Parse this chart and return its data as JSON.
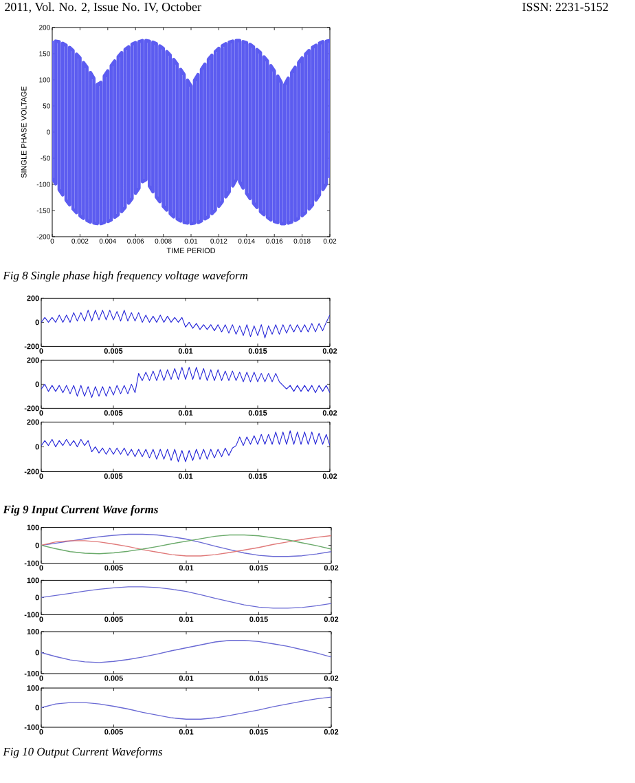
{
  "chart_data": [
    {
      "type": "line",
      "xlabel": "TIME PERIOD",
      "ylabel": "SINGLE PHASE VOLTAGE",
      "annotations": [
        "2011, Vol. No. 2, Issue No. IV, October",
        "ISSN: 2231-5152",
        "Fig 8 Single phase high frequency voltage waveform"
      ],
      "xlim": [
        0,
        0.02
      ],
      "ylim": [
        -200,
        200
      ],
      "xticks": [
        0,
        0.002,
        0.004,
        0.006,
        0.008,
        0.01,
        0.012,
        0.014,
        0.016,
        0.018,
        0.02
      ],
      "yticks": [
        -200,
        -150,
        -100,
        -50,
        0,
        50,
        100,
        150,
        200
      ],
      "x": [
        0,
        0,
        0.00025,
        0.00025,
        0.0005,
        0.0005,
        0.00075,
        0.00075,
        0.001,
        0.001,
        0.00125,
        0.00125,
        0.0015,
        0.0015,
        0.00175,
        0.00175,
        0.002,
        0.002,
        0.00225,
        0.00225,
        0.0025,
        0.0025,
        0.00275,
        0.00275,
        0.003,
        0.003,
        0.00325,
        0.00325,
        0.0035,
        0.0035,
        0.00375,
        0.00375,
        0.004,
        0.004,
        0.00425,
        0.00425,
        0.0045,
        0.0045,
        0.00475,
        0.00475,
        0.005,
        0.005,
        0.00525,
        0.00525,
        0.0055,
        0.0055,
        0.00575,
        0.00575,
        0.006,
        0.006,
        0.00625,
        0.00625,
        0.0065,
        0.0065,
        0.00675,
        0.00675,
        0.007,
        0.007,
        0.00725,
        0.00725,
        0.0075,
        0.0075,
        0.00775,
        0.00775,
        0.008,
        0.008,
        0.00825,
        0.00825,
        0.0085,
        0.0085,
        0.00875,
        0.00875,
        0.009,
        0.009,
        0.00925,
        0.00925,
        0.0095,
        0.0095,
        0.00975,
        0.00975,
        0.01,
        0.01,
        0.01025,
        0.01025,
        0.0105,
        0.0105,
        0.01075,
        0.01075,
        0.011,
        0.011,
        0.01125,
        0.01125,
        0.0115,
        0.0115,
        0.01175,
        0.01175,
        0.012,
        0.012,
        0.01225,
        0.01225,
        0.0125,
        0.0125,
        0.01275,
        0.01275,
        0.013,
        0.013,
        0.01325,
        0.01325,
        0.0135,
        0.0135,
        0.01375,
        0.01375,
        0.014,
        0.014,
        0.01425,
        0.01425,
        0.0145,
        0.0145,
        0.01475,
        0.01475,
        0.015,
        0.015,
        0.01525,
        0.01525,
        0.0155,
        0.0155,
        0.01575,
        0.01575,
        0.016,
        0.016,
        0.01625,
        0.01625,
        0.0165,
        0.0165,
        0.01675,
        0.01675,
        0.017,
        0.017,
        0.01725,
        0.01725,
        0.0175,
        0.0175,
        0.01775,
        0.01775,
        0.018,
        0.018,
        0.01825,
        0.01825,
        0.0185,
        0.0185,
        0.01875,
        0.01875,
        0.019,
        0.019,
        0.01925,
        0.01925,
        0.0195,
        0.0195,
        0.01975,
        0.01975,
        0.02,
        0.02
      ],
      "series": [
        {
          "color": "#5c5cf0",
          "values": [
            175,
            -88,
            -99,
            174,
            173,
            -110,
            -120,
            170,
            166,
            -130,
            -139,
            162,
            156,
            -147,
            -154,
            149,
            142,
            -160,
            -165,
            133,
            124,
            -169,
            -172,
            114,
            103,
            -174,
            -175,
            91,
            95,
            -175,
            -173,
            107,
            117,
            -171,
            -168,
            127,
            136,
            -163,
            -158,
            144,
            152,
            -152,
            -144,
            158,
            163,
            -136,
            -127,
            168,
            171,
            -117,
            -107,
            173,
            175,
            -95,
            -91,
            175,
            174,
            -103,
            -114,
            172,
            169,
            -124,
            -133,
            165,
            160,
            -142,
            -149,
            154,
            147,
            -156,
            -162,
            139,
            130,
            -166,
            -170,
            120,
            110,
            -173,
            -174,
            99,
            88,
            -175,
            -174,
            99,
            110,
            -173,
            -170,
            120,
            130,
            -166,
            -162,
            139,
            147,
            -156,
            -149,
            154,
            160,
            -142,
            -133,
            165,
            169,
            -124,
            -114,
            172,
            174,
            -103,
            -91,
            175,
            175,
            -95,
            -107,
            173,
            171,
            -117,
            -127,
            168,
            163,
            -136,
            -144,
            158,
            152,
            -152,
            -158,
            144,
            136,
            -163,
            -168,
            127,
            117,
            -171,
            -173,
            107,
            95,
            -175,
            -175,
            91,
            103,
            -174,
            -172,
            114,
            124,
            -169,
            -165,
            133,
            142,
            -160,
            -154,
            149,
            156,
            -147,
            -139,
            162,
            166,
            -130,
            -120,
            170,
            173,
            -110,
            -99,
            174,
            175,
            -88
          ]
        }
      ]
    },
    {
      "type": "line",
      "xlim": [
        0,
        0.02
      ],
      "ylim": [
        -200,
        200
      ],
      "xticks": [
        0,
        0.005,
        0.01,
        0.015,
        0.02
      ],
      "yticks": [
        -200,
        0,
        200
      ],
      "x": [
        0,
        0.00025,
        0.0005,
        0.00075,
        0.001,
        0.00125,
        0.0015,
        0.00175,
        0.002,
        0.00225,
        0.0025,
        0.00275,
        0.003,
        0.00325,
        0.0035,
        0.00375,
        0.004,
        0.00425,
        0.0045,
        0.00475,
        0.005,
        0.00525,
        0.0055,
        0.00575,
        0.006,
        0.00625,
        0.0065,
        0.00675,
        0.007,
        0.00725,
        0.0075,
        0.00775,
        0.008,
        0.00825,
        0.0085,
        0.00875,
        0.009,
        0.00925,
        0.0095,
        0.00975,
        0.01,
        0.01025,
        0.0105,
        0.01075,
        0.011,
        0.01125,
        0.0115,
        0.01175,
        0.012,
        0.01225,
        0.0125,
        0.01275,
        0.013,
        0.01325,
        0.0135,
        0.01375,
        0.014,
        0.01425,
        0.0145,
        0.01475,
        0.015,
        0.01525,
        0.0155,
        0.01575,
        0.016,
        0.01625,
        0.0165,
        0.01675,
        0.017,
        0.01725,
        0.0175,
        0.01775,
        0.018,
        0.01825,
        0.0185,
        0.01875,
        0.019,
        0.01925,
        0.0195,
        0.01975,
        0.02
      ],
      "series": [
        {
          "color": "#2424d8",
          "values": [
            0,
            40,
            0,
            40,
            0,
            60,
            0,
            60,
            0,
            80,
            10,
            80,
            10,
            100,
            10,
            100,
            20,
            100,
            20,
            100,
            20,
            90,
            10,
            100,
            10,
            80,
            10,
            80,
            0,
            60,
            0,
            50,
            0,
            60,
            0,
            50,
            0,
            40,
            0,
            40,
            -40,
            0,
            -50,
            -10,
            -60,
            -20,
            -60,
            -20,
            -70,
            -20,
            -80,
            -20,
            -90,
            -20,
            -100,
            -30,
            -110,
            -20,
            -120,
            -30,
            -110,
            -20,
            -130,
            -30,
            -100,
            -20,
            -100,
            -20,
            -90,
            -20,
            -80,
            -20,
            -80,
            -20,
            -80,
            -10,
            -80,
            -10,
            -70,
            0,
            60
          ]
        }
      ]
    },
    {
      "type": "line",
      "xlim": [
        0,
        0.02
      ],
      "ylim": [
        -200,
        200
      ],
      "xticks": [
        0,
        0.005,
        0.01,
        0.015,
        0.02
      ],
      "yticks": [
        -200,
        0,
        200
      ],
      "x": [
        0,
        0.00025,
        0.0005,
        0.00075,
        0.001,
        0.00125,
        0.0015,
        0.00175,
        0.002,
        0.00225,
        0.0025,
        0.00275,
        0.003,
        0.00325,
        0.0035,
        0.00375,
        0.004,
        0.00425,
        0.0045,
        0.00475,
        0.005,
        0.00525,
        0.0055,
        0.00575,
        0.006,
        0.00625,
        0.0065,
        0.00675,
        0.007,
        0.00725,
        0.0075,
        0.00775,
        0.008,
        0.00825,
        0.0085,
        0.00875,
        0.009,
        0.00925,
        0.0095,
        0.00975,
        0.01,
        0.01025,
        0.0105,
        0.01075,
        0.011,
        0.01125,
        0.0115,
        0.01175,
        0.012,
        0.01225,
        0.0125,
        0.01275,
        0.013,
        0.01325,
        0.0135,
        0.01375,
        0.014,
        0.01425,
        0.0145,
        0.01475,
        0.015,
        0.01525,
        0.0155,
        0.01575,
        0.016,
        0.01625,
        0.0165,
        0.01675,
        0.017,
        0.01725,
        0.0175,
        0.01775,
        0.018,
        0.01825,
        0.0185,
        0.01875,
        0.019,
        0.01925,
        0.0195,
        0.01975,
        0.02
      ],
      "series": [
        {
          "color": "#2424d8",
          "values": [
            -40,
            0,
            -60,
            -10,
            -60,
            -10,
            -70,
            -10,
            -80,
            -10,
            -100,
            -10,
            -100,
            -20,
            -110,
            -20,
            -100,
            -20,
            -100,
            -20,
            -90,
            -10,
            -80,
            -10,
            -80,
            0,
            -70,
            90,
            30,
            100,
            30,
            110,
            30,
            120,
            30,
            120,
            40,
            130,
            40,
            140,
            40,
            140,
            40,
            140,
            40,
            130,
            30,
            120,
            30,
            120,
            30,
            110,
            30,
            110,
            30,
            100,
            20,
            100,
            20,
            100,
            20,
            90,
            20,
            90,
            20,
            90,
            20,
            -10,
            -40,
            -10,
            -60,
            -10,
            -60,
            -10,
            -60,
            -10,
            -70,
            -10,
            -60,
            -10,
            -70
          ]
        }
      ]
    },
    {
      "type": "line",
      "annotations": [
        "Fig 9 Input Current Wave forms"
      ],
      "xlim": [
        0,
        0.02
      ],
      "ylim": [
        -200,
        200
      ],
      "xticks": [
        0,
        0.005,
        0.01,
        0.015,
        0.02
      ],
      "yticks": [
        -200,
        0,
        200
      ],
      "x": [
        0,
        0.00025,
        0.0005,
        0.00075,
        0.001,
        0.00125,
        0.0015,
        0.00175,
        0.002,
        0.00225,
        0.0025,
        0.00275,
        0.003,
        0.00325,
        0.0035,
        0.00375,
        0.004,
        0.00425,
        0.0045,
        0.00475,
        0.005,
        0.00525,
        0.0055,
        0.00575,
        0.006,
        0.00625,
        0.0065,
        0.00675,
        0.007,
        0.00725,
        0.0075,
        0.00775,
        0.008,
        0.00825,
        0.0085,
        0.00875,
        0.009,
        0.00925,
        0.0095,
        0.00975,
        0.01,
        0.01025,
        0.0105,
        0.01075,
        0.011,
        0.01125,
        0.0115,
        0.01175,
        0.012,
        0.01225,
        0.0125,
        0.01275,
        0.013,
        0.01325,
        0.0135,
        0.01375,
        0.014,
        0.01425,
        0.0145,
        0.01475,
        0.015,
        0.01525,
        0.0155,
        0.01575,
        0.016,
        0.01625,
        0.0165,
        0.01675,
        0.017,
        0.01725,
        0.0175,
        0.01775,
        0.018,
        0.01825,
        0.0185,
        0.01875,
        0.019,
        0.01925,
        0.0195,
        0.01975,
        0.02
      ],
      "series": [
        {
          "color": "#2424d8",
          "values": [
            10,
            50,
            10,
            60,
            0,
            50,
            10,
            60,
            10,
            50,
            0,
            60,
            10,
            50,
            -40,
            0,
            -50,
            -10,
            -60,
            -10,
            -60,
            -10,
            -60,
            -10,
            -70,
            -20,
            -80,
            -20,
            -80,
            -20,
            -90,
            -20,
            -100,
            -20,
            -100,
            -20,
            -110,
            -20,
            -120,
            -30,
            -120,
            -30,
            -110,
            -20,
            -100,
            -20,
            -100,
            -20,
            -90,
            -20,
            -80,
            -10,
            -70,
            -10,
            10,
            80,
            10,
            80,
            20,
            90,
            20,
            100,
            20,
            100,
            20,
            120,
            20,
            120,
            20,
            130,
            20,
            120,
            20,
            120,
            20,
            120,
            20,
            110,
            20,
            100,
            10
          ]
        }
      ]
    },
    {
      "type": "line",
      "xlim": [
        0,
        0.02
      ],
      "ylim": [
        -100,
        100
      ],
      "xticks": [
        0,
        0.005,
        0.01,
        0.015,
        0.02
      ],
      "yticks": [
        -100,
        0,
        100
      ],
      "x": [
        0,
        0.001,
        0.002,
        0.003,
        0.004,
        0.005,
        0.006,
        0.007,
        0.008,
        0.009,
        0.01,
        0.011,
        0.012,
        0.013,
        0.014,
        0.015,
        0.016,
        0.017,
        0.018,
        0.019,
        0.02
      ],
      "series": [
        {
          "color": "#6a6ad4",
          "values": [
            0,
            12,
            24,
            37,
            48,
            56,
            62,
            62,
            58,
            48,
            35,
            16,
            -5,
            -24,
            -43,
            -56,
            -62,
            -62,
            -58,
            -48,
            -35
          ]
        },
        {
          "color": "#e07a7a",
          "values": [
            0,
            19,
            26,
            26,
            19,
            7,
            -7,
            -24,
            -38,
            -52,
            -59,
            -59,
            -52,
            -40,
            -26,
            -12,
            5,
            19,
            33,
            45,
            54
          ]
        },
        {
          "color": "#6aaa6a",
          "values": [
            0,
            -19,
            -35,
            -44,
            -47,
            -42,
            -33,
            -21,
            -7,
            9,
            23,
            37,
            51,
            58,
            58,
            53,
            42,
            30,
            14,
            -2,
            -21
          ]
        }
      ]
    },
    {
      "type": "line",
      "xlim": [
        0,
        0.02
      ],
      "ylim": [
        -100,
        100
      ],
      "xticks": [
        0,
        0.005,
        0.01,
        0.015,
        0.02
      ],
      "yticks": [
        -100,
        0,
        100
      ],
      "x": [
        0,
        0.001,
        0.002,
        0.003,
        0.004,
        0.005,
        0.006,
        0.007,
        0.008,
        0.009,
        0.01,
        0.011,
        0.012,
        0.013,
        0.014,
        0.015,
        0.016,
        0.017,
        0.018,
        0.019,
        0.02
      ],
      "series": [
        {
          "color": "#6a6ad4",
          "values": [
            0,
            12,
            24,
            37,
            48,
            56,
            62,
            62,
            58,
            48,
            35,
            16,
            -5,
            -24,
            -43,
            -56,
            -62,
            -62,
            -58,
            -48,
            -35
          ]
        }
      ]
    },
    {
      "type": "line",
      "xlim": [
        0,
        0.02
      ],
      "ylim": [
        -100,
        100
      ],
      "xticks": [
        0,
        0.005,
        0.01,
        0.015,
        0.02
      ],
      "yticks": [
        -100,
        0,
        100
      ],
      "x": [
        0,
        0.001,
        0.002,
        0.003,
        0.004,
        0.005,
        0.006,
        0.007,
        0.008,
        0.009,
        0.01,
        0.011,
        0.012,
        0.013,
        0.014,
        0.015,
        0.016,
        0.017,
        0.018,
        0.019,
        0.02
      ],
      "series": [
        {
          "color": "#6a6ad4",
          "values": [
            0,
            -19,
            -35,
            -44,
            -47,
            -42,
            -33,
            -21,
            -7,
            9,
            23,
            37,
            51,
            58,
            58,
            53,
            42,
            30,
            14,
            -2,
            -21
          ]
        }
      ]
    },
    {
      "type": "line",
      "annotations": [
        "Fig 10 Output Current Waveforms"
      ],
      "xlim": [
        0,
        0.02
      ],
      "ylim": [
        -100,
        100
      ],
      "xticks": [
        0,
        0.005,
        0.01,
        0.015,
        0.02
      ],
      "yticks": [
        -100,
        0,
        100
      ],
      "x": [
        0,
        0.001,
        0.002,
        0.003,
        0.004,
        0.005,
        0.006,
        0.007,
        0.008,
        0.009,
        0.01,
        0.011,
        0.012,
        0.013,
        0.014,
        0.015,
        0.016,
        0.017,
        0.018,
        0.019,
        0.02
      ],
      "series": [
        {
          "color": "#6a6ad4",
          "values": [
            0,
            19,
            26,
            26,
            19,
            7,
            -7,
            -24,
            -38,
            -52,
            -59,
            -59,
            -52,
            -40,
            -26,
            -12,
            5,
            19,
            33,
            45,
            54
          ]
        }
      ]
    }
  ]
}
